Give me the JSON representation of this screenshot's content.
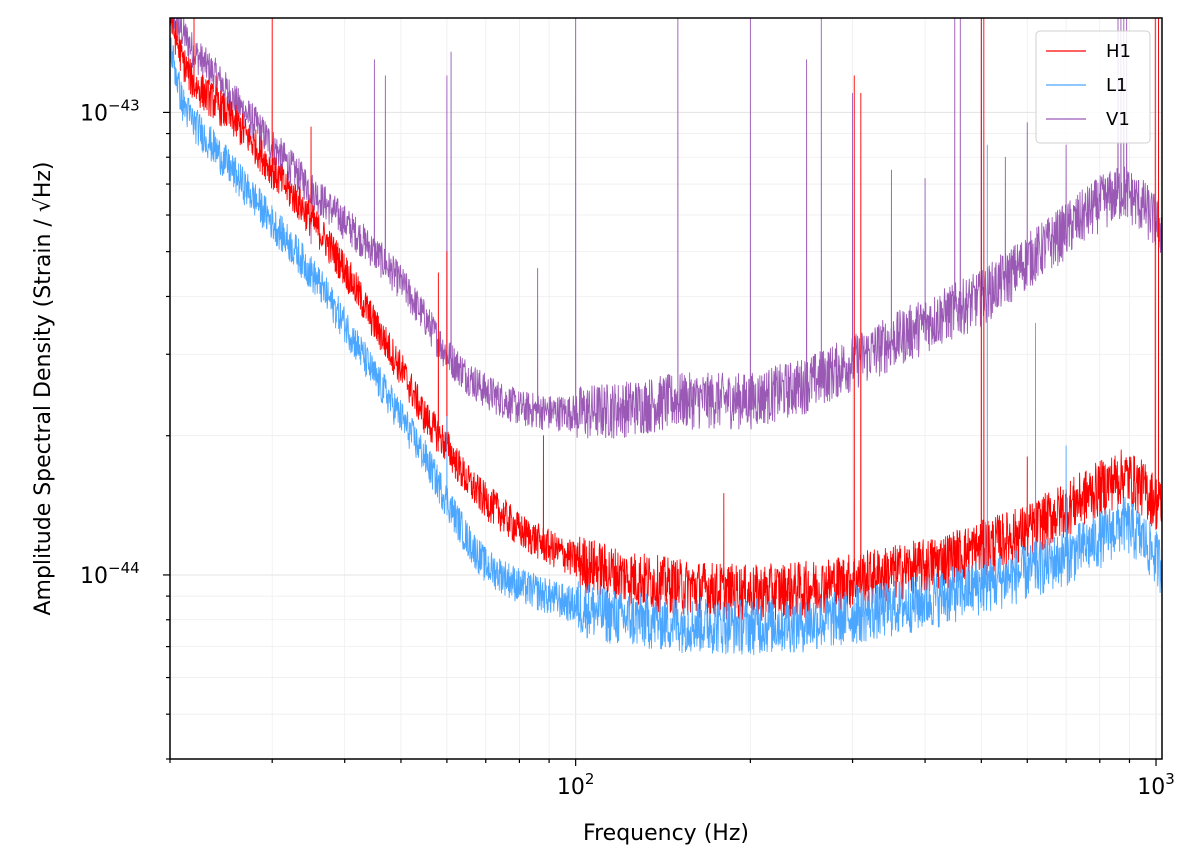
{
  "chart_data": {
    "type": "line",
    "xscale": "log",
    "yscale": "log",
    "xlim": [
      20,
      1024
    ],
    "ylim": [
      4e-45,
      1.6e-43
    ],
    "xlabel": "Frequency (Hz)",
    "ylabel": "Amplitude Spectral Density (Strain / √Hz)",
    "grid": true,
    "legend_loc": "top-right",
    "x_ticks": [
      {
        "value": 100,
        "base": "10",
        "exp": "2"
      },
      {
        "value": 1000,
        "base": "10",
        "exp": "3"
      }
    ],
    "y_ticks": [
      {
        "value": 1e-44,
        "base": "10",
        "exp": "−44"
      },
      {
        "value": 1e-43,
        "base": "10",
        "exp": "−43"
      }
    ],
    "series": [
      {
        "name": "H1",
        "color": "#ff0000",
        "points": [
          [
            20,
            1.6e-43
          ],
          [
            21,
            1.3e-43
          ],
          [
            22,
            1.15e-43
          ],
          [
            24,
            1.05e-43
          ],
          [
            26,
            9.5e-44
          ],
          [
            28,
            8.5e-44
          ],
          [
            30,
            7.5e-44
          ],
          [
            33,
            6.5e-44
          ],
          [
            36,
            5.6e-44
          ],
          [
            40,
            4.6e-44
          ],
          [
            45,
            3.5e-44
          ],
          [
            50,
            2.8e-44
          ],
          [
            55,
            2.2e-44
          ],
          [
            60,
            1.9e-44
          ],
          [
            65,
            1.6e-44
          ],
          [
            70,
            1.45e-44
          ],
          [
            75,
            1.35e-44
          ],
          [
            80,
            1.25e-44
          ],
          [
            90,
            1.15e-44
          ],
          [
            100,
            1.08e-44
          ],
          [
            120,
            1e-44
          ],
          [
            150,
            9.5e-45
          ],
          [
            200,
            9.2e-45
          ],
          [
            250,
            9.4e-45
          ],
          [
            300,
            9.8e-45
          ],
          [
            400,
            1.05e-44
          ],
          [
            500,
            1.15e-44
          ],
          [
            600,
            1.25e-44
          ],
          [
            700,
            1.4e-44
          ],
          [
            800,
            1.55e-44
          ],
          [
            880,
            1.65e-44
          ],
          [
            950,
            1.55e-44
          ],
          [
            1024,
            1.4e-44
          ]
        ],
        "spikes": [
          [
            22,
            1.6e-43
          ],
          [
            24,
            1.2e-43
          ],
          [
            30,
            1.6e-43
          ],
          [
            35,
            9.3e-44
          ],
          [
            46,
            3.5e-44
          ],
          [
            58,
            4.5e-44
          ],
          [
            60,
            5e-44
          ],
          [
            88,
            2e-44
          ],
          [
            180,
            1.5e-44
          ],
          [
            302,
            1.2e-43
          ],
          [
            310,
            1.1e-43
          ],
          [
            500,
            1.6e-43
          ],
          [
            505,
            1.6e-43
          ],
          [
            600,
            1.8e-44
          ],
          [
            997,
            1.6e-43
          ],
          [
            1010,
            1.6e-43
          ]
        ]
      },
      {
        "name": "L1",
        "color": "#4ba6ff",
        "points": [
          [
            20,
            1.4e-43
          ],
          [
            21,
            1.05e-43
          ],
          [
            22,
            9.5e-44
          ],
          [
            24,
            8.3e-44
          ],
          [
            26,
            7.3e-44
          ],
          [
            28,
            6.5e-44
          ],
          [
            30,
            5.8e-44
          ],
          [
            33,
            5e-44
          ],
          [
            36,
            4.3e-44
          ],
          [
            40,
            3.5e-44
          ],
          [
            45,
            2.7e-44
          ],
          [
            50,
            2.2e-44
          ],
          [
            55,
            1.8e-44
          ],
          [
            60,
            1.45e-44
          ],
          [
            65,
            1.2e-44
          ],
          [
            70,
            1.05e-44
          ],
          [
            80,
            9.5e-45
          ],
          [
            90,
            9e-45
          ],
          [
            100,
            8.6e-45
          ],
          [
            120,
            8.1e-45
          ],
          [
            150,
            7.9e-45
          ],
          [
            200,
            7.8e-45
          ],
          [
            250,
            7.9e-45
          ],
          [
            300,
            8.2e-45
          ],
          [
            400,
            8.8e-45
          ],
          [
            500,
            9.5e-45
          ],
          [
            600,
            1.02e-44
          ],
          [
            700,
            1.1e-44
          ],
          [
            800,
            1.2e-44
          ],
          [
            880,
            1.3e-44
          ],
          [
            950,
            1.2e-44
          ],
          [
            1024,
            1.05e-44
          ]
        ],
        "spikes": [
          [
            60,
            2.2e-44
          ],
          [
            305,
            9.5e-45
          ],
          [
            500,
            1.1e-44
          ],
          [
            508,
            1.3e-44
          ],
          [
            512,
            8.5e-44
          ],
          [
            620,
            3.5e-44
          ],
          [
            700,
            1.9e-44
          ]
        ]
      },
      {
        "name": "V1",
        "color": "#9b59b6",
        "points": [
          [
            20,
            1.6e-43
          ],
          [
            21,
            1.5e-43
          ],
          [
            22,
            1.35e-43
          ],
          [
            24,
            1.2e-43
          ],
          [
            26,
            1.05e-43
          ],
          [
            28,
            9.5e-44
          ],
          [
            30,
            8.5e-44
          ],
          [
            33,
            7.4e-44
          ],
          [
            36,
            6.6e-44
          ],
          [
            40,
            5.8e-44
          ],
          [
            45,
            5e-44
          ],
          [
            50,
            4.3e-44
          ],
          [
            55,
            3.6e-44
          ],
          [
            60,
            3e-44
          ],
          [
            65,
            2.7e-44
          ],
          [
            70,
            2.5e-44
          ],
          [
            80,
            2.3e-44
          ],
          [
            90,
            2.25e-44
          ],
          [
            100,
            2.25e-44
          ],
          [
            120,
            2.3e-44
          ],
          [
            150,
            2.4e-44
          ],
          [
            200,
            2.4e-44
          ],
          [
            250,
            2.6e-44
          ],
          [
            300,
            2.9e-44
          ],
          [
            400,
            3.5e-44
          ],
          [
            500,
            4e-44
          ],
          [
            600,
            4.8e-44
          ],
          [
            700,
            5.6e-44
          ],
          [
            800,
            6.4e-44
          ],
          [
            880,
            6.8e-44
          ],
          [
            950,
            6.3e-44
          ],
          [
            1024,
            5.6e-44
          ]
        ],
        "spikes": [
          [
            35,
            5.2e-44
          ],
          [
            45,
            1.3e-43
          ],
          [
            47,
            1.2e-43
          ],
          [
            60,
            1.2e-43
          ],
          [
            61,
            1.35e-43
          ],
          [
            86,
            4.6e-44
          ],
          [
            100,
            1.6e-43
          ],
          [
            150,
            1.6e-43
          ],
          [
            200,
            1.6e-43
          ],
          [
            250,
            1.3e-43
          ],
          [
            265,
            1.6e-43
          ],
          [
            300,
            1.1e-43
          ],
          [
            350,
            7.5e-44
          ],
          [
            400,
            7.2e-44
          ],
          [
            450,
            1.6e-43
          ],
          [
            460,
            1.6e-43
          ],
          [
            500,
            1.6e-43
          ],
          [
            550,
            8e-44
          ],
          [
            600,
            9.5e-44
          ],
          [
            700,
            8.5e-44
          ],
          [
            860,
            1.6e-43
          ],
          [
            870,
            1.6e-43
          ],
          [
            880,
            1.6e-43
          ],
          [
            890,
            1.6e-43
          ],
          [
            1010,
            1.6e-43
          ]
        ]
      }
    ]
  }
}
